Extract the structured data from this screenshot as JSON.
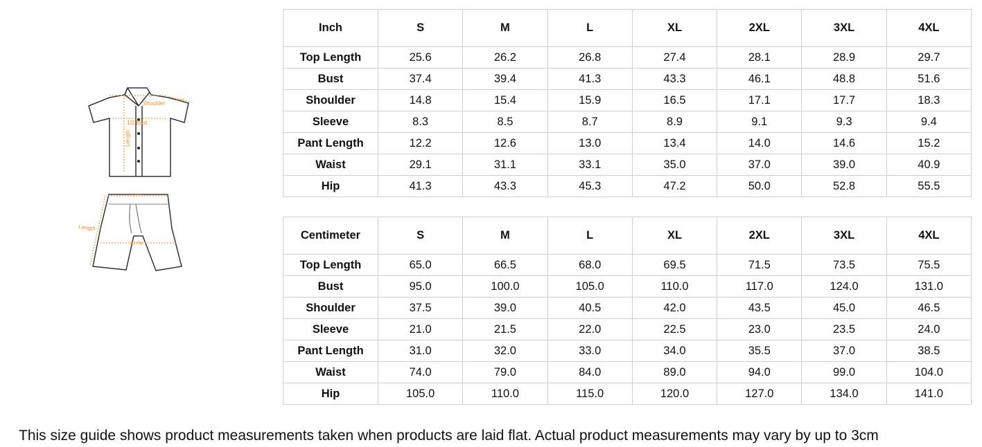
{
  "illustration": {
    "shirt_labels": [
      "Shoulder",
      "Sleeve",
      "1/2 Bust",
      "Length"
    ],
    "shorts_labels": [
      "1/2 Waist",
      "Length",
      "1/2 Hip"
    ],
    "accent": "#f28c28"
  },
  "sizes": [
    "S",
    "M",
    "L",
    "XL",
    "2XL",
    "3XL",
    "4XL"
  ],
  "inch": {
    "unit": "Inch",
    "rows": [
      {
        "label": "Top Length",
        "values": [
          "25.6",
          "26.2",
          "26.8",
          "27.4",
          "28.1",
          "28.9",
          "29.7"
        ]
      },
      {
        "label": "Bust",
        "values": [
          "37.4",
          "39.4",
          "41.3",
          "43.3",
          "46.1",
          "48.8",
          "51.6"
        ]
      },
      {
        "label": "Shoulder",
        "values": [
          "14.8",
          "15.4",
          "15.9",
          "16.5",
          "17.1",
          "17.7",
          "18.3"
        ]
      },
      {
        "label": "Sleeve",
        "values": [
          "8.3",
          "8.5",
          "8.7",
          "8.9",
          "9.1",
          "9.3",
          "9.4"
        ]
      },
      {
        "label": "Pant Length",
        "values": [
          "12.2",
          "12.6",
          "13.0",
          "13.4",
          "14.0",
          "14.6",
          "15.2"
        ]
      },
      {
        "label": "Waist",
        "values": [
          "29.1",
          "31.1",
          "33.1",
          "35.0",
          "37.0",
          "39.0",
          "40.9"
        ]
      },
      {
        "label": "Hip",
        "values": [
          "41.3",
          "43.3",
          "45.3",
          "47.2",
          "50.0",
          "52.8",
          "55.5"
        ]
      }
    ]
  },
  "cm": {
    "unit": "Centimeter",
    "rows": [
      {
        "label": "Top Length",
        "values": [
          "65.0",
          "66.5",
          "68.0",
          "69.5",
          "71.5",
          "73.5",
          "75.5"
        ]
      },
      {
        "label": "Bust",
        "values": [
          "95.0",
          "100.0",
          "105.0",
          "110.0",
          "117.0",
          "124.0",
          "131.0"
        ]
      },
      {
        "label": "Shoulder",
        "values": [
          "37.5",
          "39.0",
          "40.5",
          "42.0",
          "43.5",
          "45.0",
          "46.5"
        ]
      },
      {
        "label": "Sleeve",
        "values": [
          "21.0",
          "21.5",
          "22.0",
          "22.5",
          "23.0",
          "23.5",
          "24.0"
        ]
      },
      {
        "label": "Pant Length",
        "values": [
          "31.0",
          "32.0",
          "33.0",
          "34.0",
          "35.5",
          "37.0",
          "38.5"
        ]
      },
      {
        "label": "Waist",
        "values": [
          "74.0",
          "79.0",
          "84.0",
          "89.0",
          "94.0",
          "99.0",
          "104.0"
        ]
      },
      {
        "label": "Hip",
        "values": [
          "105.0",
          "110.0",
          "115.0",
          "120.0",
          "127.0",
          "134.0",
          "141.0"
        ]
      }
    ]
  },
  "note": "This size guide shows product measurements taken when products are laid flat. Actual product measurements may vary by up to 3cm"
}
